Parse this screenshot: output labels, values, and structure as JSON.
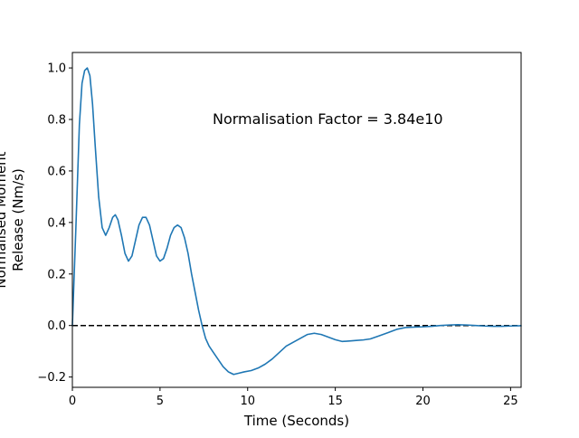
{
  "chart_data": {
    "type": "line",
    "title": "",
    "xlabel": "Time (Seconds)",
    "ylabel_lines": [
      "Normalised Moment",
      "Release (Nm/s)"
    ],
    "xlim": [
      0,
      25.6
    ],
    "ylim": [
      -0.24,
      1.06
    ],
    "xticks": [
      0,
      5,
      10,
      15,
      20,
      25
    ],
    "yticks": [
      -0.2,
      0.0,
      0.2,
      0.4,
      0.6,
      0.8,
      1.0
    ],
    "ytick_labels": [
      "−0.2",
      "0.0",
      "0.2",
      "0.4",
      "0.6",
      "0.8",
      "1.0"
    ],
    "grid": false,
    "annotation": {
      "text": "Normalisation Factor = 3.84e10",
      "x": 8.0,
      "y": 0.8
    },
    "reference_line": {
      "y": 0.0,
      "style": "dashed",
      "color": "#000000"
    },
    "series": [
      {
        "color": "#1f77b4",
        "x": [
          0.0,
          0.2,
          0.4,
          0.55,
          0.7,
          0.85,
          0.9,
          1.0,
          1.15,
          1.3,
          1.5,
          1.7,
          1.9,
          2.1,
          2.3,
          2.45,
          2.6,
          2.8,
          3.0,
          3.2,
          3.4,
          3.6,
          3.8,
          4.0,
          4.2,
          4.4,
          4.6,
          4.8,
          5.0,
          5.2,
          5.4,
          5.6,
          5.8,
          6.0,
          6.2,
          6.4,
          6.6,
          6.8,
          7.0,
          7.2,
          7.4,
          7.6,
          7.8,
          8.0,
          8.3,
          8.6,
          8.9,
          9.2,
          9.5,
          9.8,
          10.2,
          10.6,
          11.0,
          11.4,
          11.8,
          12.2,
          12.6,
          13.0,
          13.4,
          13.8,
          14.2,
          14.6,
          15.0,
          15.4,
          15.8,
          16.2,
          16.6,
          17.0,
          17.5,
          18.0,
          18.5,
          19.0,
          19.5,
          20.0,
          20.5,
          21.0,
          21.5,
          22.0,
          22.5,
          23.0,
          23.5,
          24.0,
          24.5,
          25.0,
          25.6
        ],
        "y": [
          0.0,
          0.38,
          0.78,
          0.94,
          0.99,
          1.0,
          0.99,
          0.97,
          0.86,
          0.7,
          0.5,
          0.38,
          0.35,
          0.38,
          0.42,
          0.43,
          0.41,
          0.35,
          0.28,
          0.25,
          0.27,
          0.33,
          0.39,
          0.42,
          0.42,
          0.39,
          0.33,
          0.27,
          0.25,
          0.26,
          0.3,
          0.35,
          0.38,
          0.39,
          0.38,
          0.34,
          0.28,
          0.2,
          0.13,
          0.06,
          0.0,
          -0.05,
          -0.08,
          -0.1,
          -0.13,
          -0.16,
          -0.18,
          -0.19,
          -0.185,
          -0.18,
          -0.175,
          -0.165,
          -0.15,
          -0.13,
          -0.105,
          -0.08,
          -0.065,
          -0.05,
          -0.035,
          -0.03,
          -0.035,
          -0.045,
          -0.055,
          -0.062,
          -0.06,
          -0.058,
          -0.056,
          -0.052,
          -0.04,
          -0.028,
          -0.015,
          -0.008,
          -0.006,
          -0.005,
          -0.003,
          0.0,
          0.002,
          0.003,
          0.002,
          0.0,
          -0.002,
          -0.003,
          -0.003,
          -0.002,
          -0.001
        ]
      }
    ]
  }
}
